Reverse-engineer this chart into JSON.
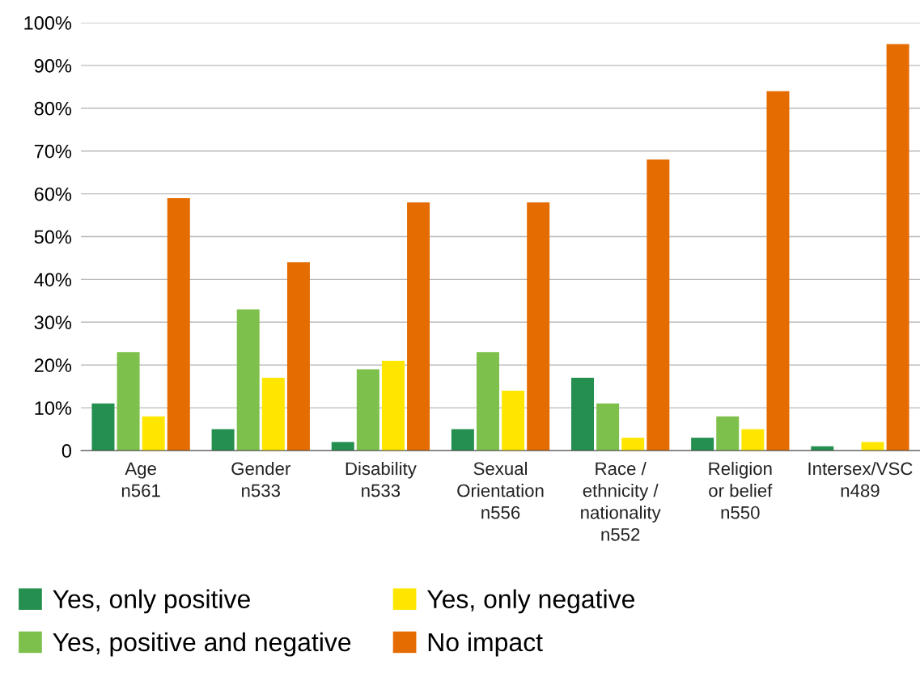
{
  "chart_data": {
    "type": "bar",
    "categories": [
      "Age\nn561",
      "Gender\nn533",
      "Disability\nn533",
      "Sexual\nOrientation\nn556",
      "Race /\nethnicity /\nnationality\nn552",
      "Religion\nor belief\nn550",
      "Intersex/VSC\nn489"
    ],
    "series": [
      {
        "name": "Yes, only positive",
        "color": "#248f4f",
        "values": [
          11,
          5,
          2,
          5,
          17,
          3,
          1
        ]
      },
      {
        "name": "Yes, positive and negative",
        "color": "#7dc04b",
        "values": [
          23,
          33,
          19,
          23,
          11,
          8,
          0
        ]
      },
      {
        "name": "Yes, only negative",
        "color": "#ffe600",
        "values": [
          8,
          17,
          21,
          14,
          3,
          5,
          2
        ]
      },
      {
        "name": "No impact",
        "color": "#e46c00",
        "values": [
          59,
          44,
          58,
          58,
          68,
          84,
          95
        ]
      }
    ],
    "ylim": [
      0,
      100
    ],
    "yticks": [
      {
        "value": 0,
        "label": "0"
      },
      {
        "value": 10,
        "label": "10%"
      },
      {
        "value": 20,
        "label": "20%"
      },
      {
        "value": 30,
        "label": "30%"
      },
      {
        "value": 40,
        "label": "40%"
      },
      {
        "value": 50,
        "label": "50%"
      },
      {
        "value": 60,
        "label": "60%"
      },
      {
        "value": 70,
        "label": "70%"
      },
      {
        "value": 80,
        "label": "80%"
      },
      {
        "value": 90,
        "label": "90%"
      },
      {
        "value": 100,
        "label": "100%"
      }
    ],
    "grid": "y",
    "legend": "bottom"
  }
}
